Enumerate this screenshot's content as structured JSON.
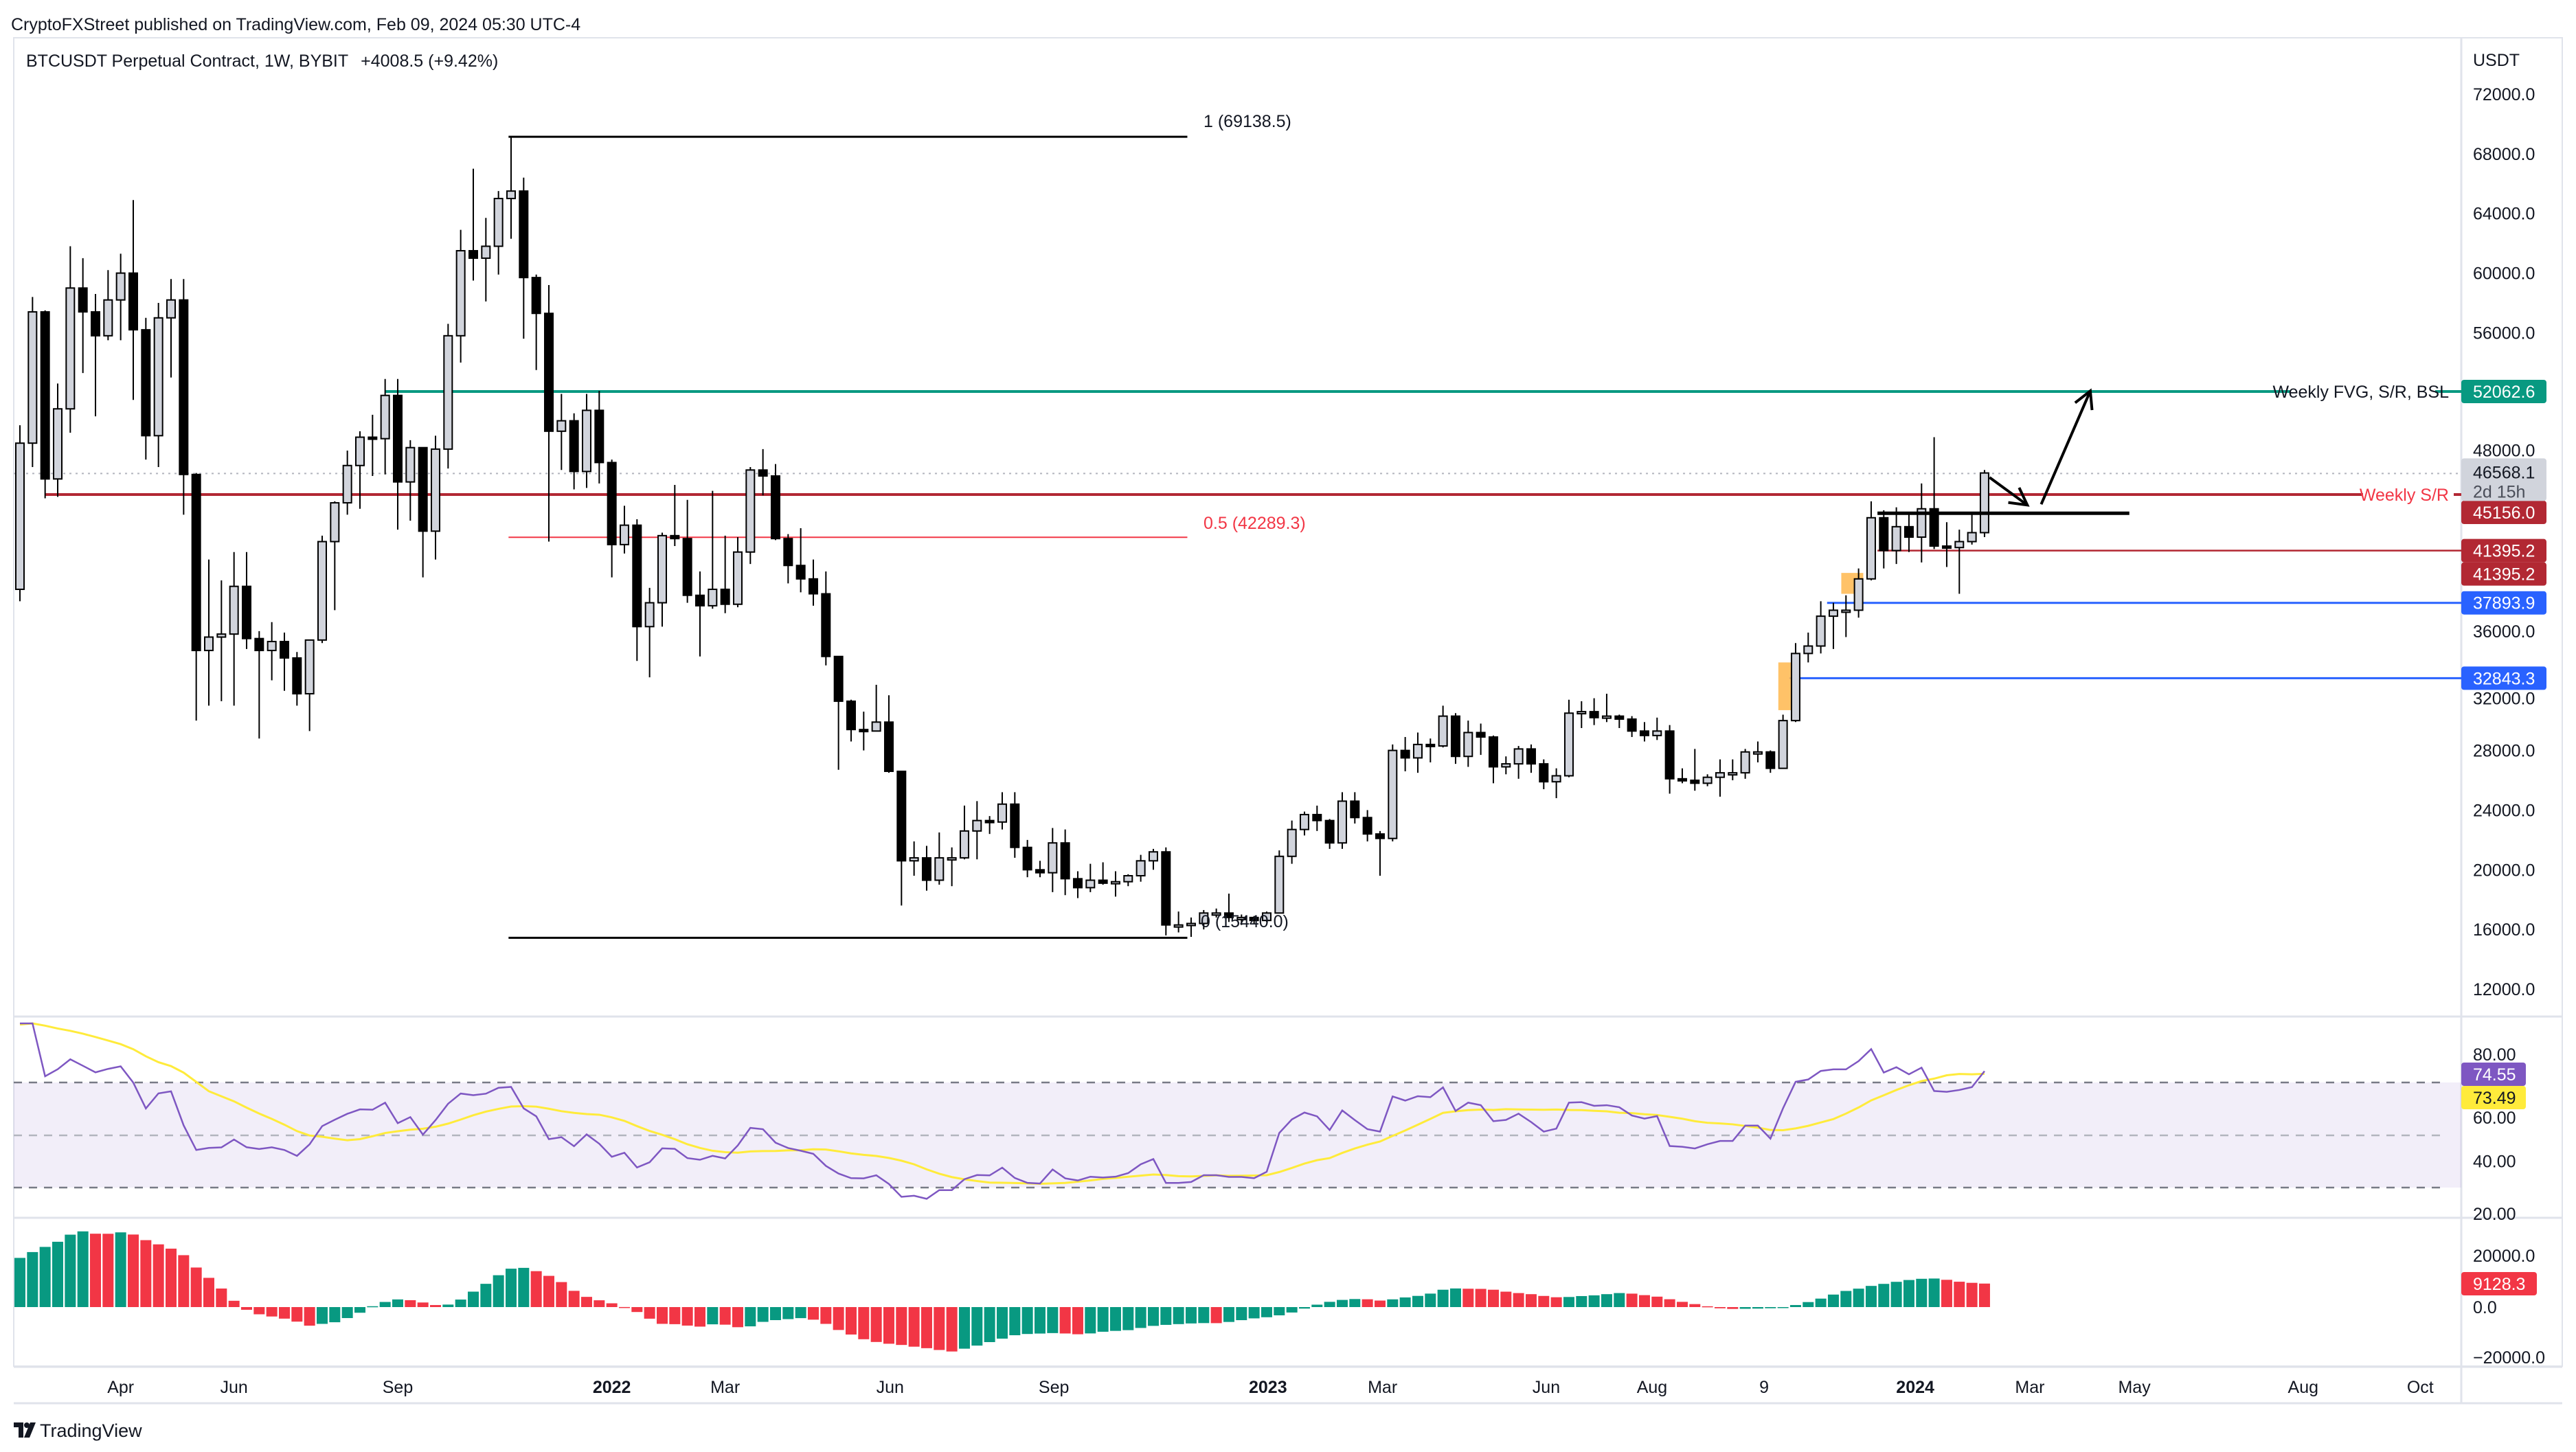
{
  "header": {
    "published": "CryptoFXStreet published on TradingView.com, Feb 09, 2024 05:30 UTC-4",
    "symbol": "BTCUSDT Perpetual Contract, 1W, BYBIT",
    "change": "+4008.5 (+9.42%)"
  },
  "axis": {
    "currency": "USDT",
    "price_ticks": [
      "72000.0",
      "68000.0",
      "64000.0",
      "60000.0",
      "56000.0",
      "48000.0",
      "36000.0",
      "32000.0",
      "28000.0",
      "24000.0",
      "20000.0",
      "16000.0",
      "12000.0"
    ],
    "rsi_ticks": [
      "80.00",
      "60.00",
      "40.00",
      "20.00"
    ],
    "osc_ticks": [
      "20000.0",
      "0.0",
      "−20000.0"
    ],
    "time_labels": [
      {
        "label": "Apr",
        "week": 8.0,
        "bold": false
      },
      {
        "label": "Jun",
        "week": 17.0,
        "bold": false
      },
      {
        "label": "Sep",
        "week": 30.0,
        "bold": false
      },
      {
        "label": "2022",
        "week": 47.0,
        "bold": true
      },
      {
        "label": "Mar",
        "week": 56.0,
        "bold": false
      },
      {
        "label": "Jun",
        "week": 69.1,
        "bold": false
      },
      {
        "label": "Sep",
        "week": 82.1,
        "bold": false
      },
      {
        "label": "2023",
        "week": 99.1,
        "bold": true
      },
      {
        "label": "Mar",
        "week": 108.2,
        "bold": false
      },
      {
        "label": "Jun",
        "week": 121.2,
        "bold": false
      },
      {
        "label": "Aug",
        "week": 129.6,
        "bold": false
      },
      {
        "label": "9",
        "week": 138.5,
        "bold": false
      },
      {
        "label": "2024",
        "week": 150.5,
        "bold": true
      },
      {
        "label": "Mar",
        "week": 159.6,
        "bold": false
      },
      {
        "label": "May",
        "week": 167.9,
        "bold": false
      },
      {
        "label": "Aug",
        "week": 181.3,
        "bold": false
      },
      {
        "label": "Oct",
        "week": 190.6,
        "bold": false
      }
    ]
  },
  "badges": {
    "fvg": {
      "text": "52062.6",
      "value": 52062.6,
      "color": "#089981"
    },
    "last_price": {
      "text": "46568.1",
      "countdown": "2d 15h",
      "value": 46568.1,
      "color": "#d1d4dc"
    },
    "weekly_sr": {
      "text": "45156.0",
      "value": 45156.0,
      "color": "#b22833"
    },
    "level_a": {
      "text": "41395.2",
      "value": 41395.2,
      "color": "#b22833"
    },
    "level_b": {
      "text": "41395.2",
      "value": 41395.2,
      "color": "#b22833"
    },
    "blue_1": {
      "text": "37893.9",
      "value": 37893.9,
      "color": "#2962ff"
    },
    "blue_2": {
      "text": "32843.3",
      "value": 32843.3,
      "color": "#2962ff"
    },
    "rsi": {
      "text": "74.55",
      "value": 74.55,
      "color": "#7e57c2"
    },
    "rsi_ma": {
      "text": "73.49",
      "value": 73.49,
      "color": "#ffeb3b"
    },
    "osc": {
      "text": "9128.3",
      "value": 9128.3,
      "color": "#f23645"
    }
  },
  "annotations": {
    "fvg_label": "Weekly FVG, S/R, BSL",
    "sr_label": "Weekly S/R",
    "fib_1": {
      "label": "1 (69138.5)",
      "price": 69138.5
    },
    "fib_05": {
      "label": "0.5 (42289.3)",
      "price": 42289.3
    },
    "fib_0": {
      "label": "0 (15440.0)",
      "price": 15440.0
    },
    "fib_start_week": 38.8,
    "fib_end_week": 92.7,
    "fvg_start_week": 29,
    "sr_start_week": 2,
    "level_start_week": 147.5,
    "blue1_start_week": 143.5,
    "blue2_start_week": 140.5,
    "range_line": {
      "price": 43900,
      "start_week": 147.5,
      "end_week": 167.5
    },
    "order_blocks": [
      {
        "week": 140.5,
        "high": 33900,
        "low": 30700,
        "color": "#ffb74d"
      },
      {
        "week": 145.5,
        "high": 39900,
        "low": 38500,
        "color": "#ffb74d"
      }
    ],
    "arrows": [
      {
        "from": [
          156.4,
          46300
        ],
        "to": [
          159.4,
          44450
        ]
      },
      {
        "from": [
          160.5,
          44500
        ],
        "to": [
          164.4,
          52100
        ]
      }
    ],
    "colors": {
      "fvg": "#089981",
      "sr": "#b22833",
      "sr_text": "#f23645",
      "fib_mid": "#f23645",
      "blue": "#2962ff"
    }
  },
  "footer": {
    "logo_text": "TradingView"
  },
  "chart_data": {
    "type": "candlestick",
    "title": "BTCUSDT Perpetual Contract, 1W, BYBIT",
    "first_week": "2021-02-08",
    "interval": "1W",
    "ylim": [
      10000,
      74000
    ],
    "ohlc_thousands_usdt": [
      [
        38.8,
        49.8,
        38.0,
        48.6
      ],
      [
        48.6,
        58.4,
        47.0,
        57.4
      ],
      [
        57.4,
        57.5,
        44.9,
        46.2
      ],
      [
        46.2,
        52.6,
        45.0,
        50.9
      ],
      [
        50.9,
        61.8,
        49.3,
        59.0
      ],
      [
        59.0,
        61.0,
        53.3,
        57.4
      ],
      [
        57.4,
        58.6,
        50.4,
        55.8
      ],
      [
        55.8,
        60.2,
        55.5,
        58.2
      ],
      [
        58.2,
        61.3,
        55.5,
        60.0
      ],
      [
        60.0,
        64.9,
        51.5,
        56.2
      ],
      [
        56.2,
        57.0,
        47.5,
        49.1
      ],
      [
        49.1,
        58.0,
        47.0,
        57.0
      ],
      [
        57.0,
        59.6,
        53.0,
        58.2
      ],
      [
        58.2,
        59.6,
        43.8,
        46.5
      ],
      [
        46.5,
        46.6,
        30.0,
        34.7
      ],
      [
        34.7,
        40.8,
        31.0,
        35.6
      ],
      [
        35.6,
        39.4,
        31.3,
        35.8
      ],
      [
        35.8,
        41.3,
        31.0,
        39.0
      ],
      [
        39.0,
        41.3,
        34.8,
        35.5
      ],
      [
        35.5,
        36.0,
        28.8,
        34.7
      ],
      [
        34.7,
        36.6,
        32.7,
        35.3
      ],
      [
        35.3,
        35.9,
        32.0,
        34.2
      ],
      [
        34.2,
        34.6,
        31.0,
        31.8
      ],
      [
        31.8,
        35.4,
        29.3,
        35.4
      ],
      [
        35.4,
        42.4,
        35.2,
        42.0
      ],
      [
        42.0,
        44.7,
        37.4,
        44.6
      ],
      [
        44.6,
        48.1,
        43.8,
        47.1
      ],
      [
        47.1,
        49.4,
        44.2,
        49.0
      ],
      [
        49.0,
        50.5,
        46.4,
        48.9
      ],
      [
        48.9,
        52.9,
        46.5,
        51.8
      ],
      [
        51.8,
        52.9,
        42.8,
        46.0
      ],
      [
        46.0,
        48.8,
        43.4,
        48.3
      ],
      [
        48.3,
        48.3,
        39.6,
        42.7
      ],
      [
        42.7,
        49.1,
        40.8,
        48.2
      ],
      [
        48.2,
        56.6,
        46.9,
        55.8
      ],
      [
        55.8,
        62.9,
        54.0,
        61.5
      ],
      [
        61.5,
        67.0,
        59.5,
        61.0
      ],
      [
        61.0,
        63.7,
        58.1,
        61.8
      ],
      [
        61.8,
        65.5,
        59.9,
        65.0
      ],
      [
        65.0,
        69.1,
        62.3,
        65.5
      ],
      [
        65.5,
        66.4,
        55.6,
        59.7
      ],
      [
        59.7,
        59.9,
        53.5,
        57.3
      ],
      [
        57.3,
        59.2,
        42.0,
        49.4
      ],
      [
        49.4,
        51.9,
        46.8,
        50.1
      ],
      [
        50.1,
        50.6,
        45.5,
        46.7
      ],
      [
        46.7,
        51.9,
        45.6,
        50.8
      ],
      [
        50.8,
        52.1,
        45.9,
        47.3
      ],
      [
        47.3,
        47.5,
        39.6,
        41.8
      ],
      [
        41.8,
        44.4,
        41.2,
        43.1
      ],
      [
        43.1,
        43.5,
        34.0,
        36.3
      ],
      [
        36.3,
        38.9,
        32.9,
        37.9
      ],
      [
        37.9,
        42.6,
        36.3,
        42.4
      ],
      [
        42.4,
        45.8,
        41.7,
        42.2
      ],
      [
        42.2,
        44.8,
        37.9,
        38.4
      ],
      [
        38.4,
        40.0,
        34.3,
        37.7
      ],
      [
        37.7,
        45.4,
        37.5,
        38.8
      ],
      [
        38.8,
        42.4,
        37.2,
        37.8
      ],
      [
        37.8,
        42.3,
        37.6,
        41.3
      ],
      [
        41.3,
        47.0,
        40.5,
        46.8
      ],
      [
        46.8,
        48.2,
        45.1,
        46.4
      ],
      [
        46.4,
        47.2,
        42.1,
        42.2
      ],
      [
        42.2,
        42.5,
        39.2,
        40.4
      ],
      [
        40.4,
        42.9,
        38.6,
        39.5
      ],
      [
        39.5,
        40.8,
        37.7,
        38.5
      ],
      [
        38.5,
        40.0,
        33.7,
        34.3
      ],
      [
        34.3,
        34.3,
        26.7,
        31.3
      ],
      [
        31.3,
        31.4,
        28.6,
        29.4
      ],
      [
        29.4,
        30.6,
        28.0,
        29.3
      ],
      [
        29.3,
        32.4,
        29.3,
        29.9
      ],
      [
        29.9,
        31.7,
        26.5,
        26.6
      ],
      [
        26.6,
        26.6,
        17.6,
        20.6
      ],
      [
        20.6,
        21.9,
        19.6,
        20.8
      ],
      [
        20.8,
        21.6,
        18.6,
        19.3
      ],
      [
        19.3,
        22.5,
        19.0,
        20.8
      ],
      [
        20.8,
        21.5,
        18.9,
        20.8
      ],
      [
        20.8,
        24.3,
        20.7,
        22.6
      ],
      [
        22.6,
        24.6,
        20.7,
        23.3
      ],
      [
        23.3,
        23.6,
        22.4,
        23.2
      ],
      [
        23.2,
        25.2,
        22.7,
        24.4
      ],
      [
        24.4,
        25.2,
        20.8,
        21.5
      ],
      [
        21.5,
        22.0,
        19.5,
        20.0
      ],
      [
        20.0,
        20.6,
        19.5,
        19.8
      ],
      [
        19.8,
        22.8,
        18.5,
        21.8
      ],
      [
        21.8,
        22.7,
        18.3,
        19.4
      ],
      [
        19.4,
        19.9,
        18.1,
        18.8
      ],
      [
        18.8,
        20.4,
        18.5,
        19.3
      ],
      [
        19.3,
        20.5,
        19.0,
        19.1
      ],
      [
        19.1,
        19.9,
        18.2,
        19.2
      ],
      [
        19.2,
        19.7,
        18.9,
        19.6
      ],
      [
        19.6,
        21.0,
        19.2,
        20.6
      ],
      [
        20.6,
        21.4,
        20.0,
        21.2
      ],
      [
        21.2,
        21.5,
        15.6,
        16.3
      ],
      [
        16.3,
        17.2,
        15.8,
        16.3
      ],
      [
        16.3,
        16.8,
        15.5,
        16.4
      ],
      [
        16.4,
        17.3,
        16.0,
        17.1
      ],
      [
        17.1,
        17.4,
        16.8,
        17.1
      ],
      [
        17.1,
        18.4,
        16.5,
        16.8
      ],
      [
        16.8,
        17.0,
        16.3,
        16.8
      ],
      [
        16.8,
        16.9,
        16.4,
        16.6
      ],
      [
        16.6,
        17.2,
        16.5,
        17.1
      ],
      [
        17.1,
        21.3,
        17.1,
        20.9
      ],
      [
        20.9,
        23.3,
        20.4,
        22.7
      ],
      [
        22.7,
        23.9,
        22.3,
        23.7
      ],
      [
        23.7,
        24.3,
        22.6,
        23.3
      ],
      [
        23.3,
        23.4,
        21.4,
        21.8
      ],
      [
        21.8,
        25.2,
        21.4,
        24.6
      ],
      [
        24.6,
        25.2,
        23.1,
        23.5
      ],
      [
        23.5,
        24.0,
        21.9,
        22.4
      ],
      [
        22.4,
        22.6,
        19.6,
        22.1
      ],
      [
        22.1,
        28.4,
        21.9,
        28.0
      ],
      [
        28.0,
        28.9,
        26.6,
        27.5
      ],
      [
        27.5,
        29.2,
        26.5,
        28.4
      ],
      [
        28.4,
        28.8,
        27.2,
        28.3
      ],
      [
        28.3,
        31.0,
        28.2,
        30.3
      ],
      [
        30.3,
        30.5,
        27.1,
        27.6
      ],
      [
        27.6,
        30.0,
        26.9,
        29.2
      ],
      [
        29.2,
        29.8,
        27.7,
        28.9
      ],
      [
        28.9,
        29.0,
        25.8,
        26.9
      ],
      [
        26.9,
        27.6,
        26.4,
        27.1
      ],
      [
        27.1,
        28.3,
        26.1,
        28.1
      ],
      [
        28.1,
        28.4,
        26.5,
        27.1
      ],
      [
        27.1,
        27.4,
        25.4,
        25.9
      ],
      [
        25.9,
        26.8,
        24.8,
        26.3
      ],
      [
        26.3,
        31.4,
        26.2,
        30.5
      ],
      [
        30.5,
        31.3,
        29.5,
        30.6
      ],
      [
        30.6,
        31.5,
        29.7,
        30.2
      ],
      [
        30.2,
        31.8,
        29.9,
        30.3
      ],
      [
        30.3,
        30.4,
        29.5,
        30.1
      ],
      [
        30.1,
        30.3,
        28.9,
        29.3
      ],
      [
        29.3,
        29.9,
        28.6,
        29.0
      ],
      [
        29.0,
        30.2,
        28.7,
        29.3
      ],
      [
        29.3,
        29.7,
        25.1,
        26.1
      ],
      [
        26.1,
        26.8,
        25.8,
        26.0
      ],
      [
        26.0,
        28.1,
        25.3,
        25.8
      ],
      [
        25.8,
        26.4,
        25.6,
        26.2
      ],
      [
        26.2,
        27.4,
        24.9,
        26.5
      ],
      [
        26.5,
        27.4,
        26.0,
        26.5
      ],
      [
        26.5,
        28.1,
        26.1,
        27.9
      ],
      [
        27.9,
        28.6,
        27.2,
        27.9
      ],
      [
        27.9,
        28.0,
        26.5,
        26.8
      ],
      [
        26.8,
        30.4,
        26.8,
        30.0
      ],
      [
        30.0,
        35.2,
        29.9,
        34.5
      ],
      [
        34.5,
        35.9,
        33.9,
        35.0
      ],
      [
        35.0,
        38.0,
        34.5,
        37.0
      ],
      [
        37.0,
        37.9,
        34.8,
        37.4
      ],
      [
        37.4,
        38.4,
        35.6,
        37.4
      ],
      [
        37.4,
        40.2,
        36.9,
        39.5
      ],
      [
        39.5,
        44.7,
        39.4,
        43.6
      ],
      [
        43.6,
        44.1,
        40.2,
        41.4
      ],
      [
        41.4,
        44.3,
        40.5,
        43.0
      ],
      [
        43.0,
        43.8,
        41.3,
        42.3
      ],
      [
        42.3,
        45.9,
        40.6,
        44.2
      ],
      [
        44.2,
        49.0,
        41.5,
        41.7
      ],
      [
        41.7,
        43.3,
        40.3,
        41.6
      ],
      [
        41.6,
        42.8,
        38.5,
        42.0
      ],
      [
        42.0,
        43.8,
        41.8,
        42.6
      ],
      [
        42.6,
        46.8,
        42.3,
        46.6
      ]
    ],
    "rsi": {
      "length": 14,
      "ma_length": 14,
      "bands": [
        70,
        50,
        30
      ],
      "last": 74.55,
      "ma_last": 73.49,
      "ylim": [
        20,
        90
      ]
    },
    "oscillator": {
      "type": "histogram",
      "last": 9128.3,
      "ylim": [
        -22000,
        32000
      ]
    }
  }
}
